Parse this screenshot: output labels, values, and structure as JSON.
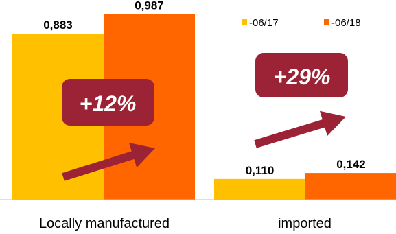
{
  "chart_data": {
    "type": "bar",
    "categories": [
      "Locally manufactured",
      "imported"
    ],
    "series": [
      {
        "name": "-06/17",
        "values": [
          0.883,
          0.11
        ],
        "labels": [
          "0,883",
          "0,110"
        ],
        "color": "#FFC000"
      },
      {
        "name": "-06/18",
        "values": [
          0.987,
          0.142
        ],
        "labels": [
          "0,987",
          "0,142"
        ],
        "color": "#FF6600"
      }
    ],
    "ylim": [
      0,
      1.0
    ],
    "grid": false,
    "legend": "top-right",
    "annotations": [
      {
        "category": "Locally manufactured",
        "text": "+12%",
        "color": "#9B2335"
      },
      {
        "category": "imported",
        "text": "+29%",
        "color": "#9B2335"
      }
    ],
    "title": "",
    "xlabel": "",
    "ylabel": ""
  }
}
